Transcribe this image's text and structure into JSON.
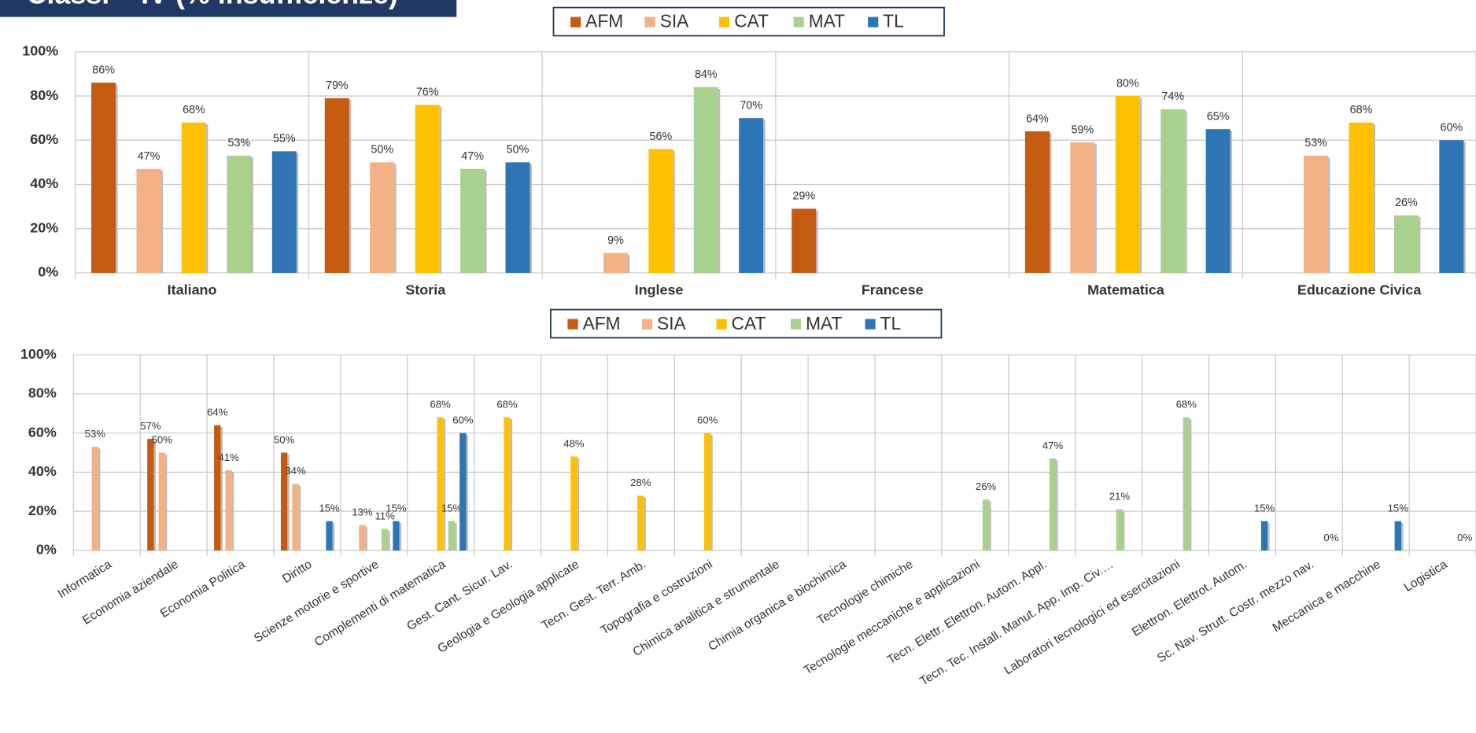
{
  "title": "Classi – IV (% insufficienze)",
  "chart_data": [
    {
      "type": "bar",
      "categories": [
        "Italiano",
        "Storia",
        "Inglese",
        "Francese",
        "Matematica",
        "Educazione Civica"
      ],
      "series": [
        {
          "name": "AFM",
          "color": "#c55a11",
          "values": [
            86,
            79,
            null,
            29,
            64,
            null
          ],
          "value_labels": [
            "86%",
            "79%",
            null,
            "29%",
            "64%",
            null
          ]
        },
        {
          "name": "SIA",
          "color": "#f4b183",
          "values": [
            47,
            50,
            9,
            null,
            59,
            53
          ],
          "value_labels": [
            "47%",
            "50%",
            "9%",
            null,
            "59%",
            "53%"
          ]
        },
        {
          "name": "CAT",
          "color": "#ffc000",
          "values": [
            68,
            76,
            56,
            null,
            80,
            68
          ],
          "value_labels": [
            "68%",
            "76%",
            "56%",
            null,
            "80%",
            "68%"
          ]
        },
        {
          "name": "MAT",
          "color": "#a9d18e",
          "values": [
            53,
            47,
            84,
            null,
            74,
            26
          ],
          "value_labels": [
            "53%",
            "47%",
            "84%",
            null,
            "74%",
            "26%"
          ]
        },
        {
          "name": "TL",
          "color": "#2e75b6",
          "values": [
            55,
            50,
            70,
            null,
            65,
            60
          ],
          "value_labels": [
            "55%",
            "50%",
            "70%",
            null,
            "65%",
            "60%"
          ]
        }
      ],
      "ylim": [
        0,
        100
      ],
      "yticks": [
        {
          "value": 0,
          "label": "0%"
        },
        {
          "value": 20,
          "label": "20%"
        },
        {
          "value": 40,
          "label": "40%"
        },
        {
          "value": 60,
          "label": "60%"
        },
        {
          "value": 80,
          "label": "80%"
        },
        {
          "value": 100,
          "label": "100%"
        }
      ],
      "grid": true,
      "legend": "top"
    },
    {
      "type": "bar",
      "categories": [
        "Informatica",
        "Economia aziendale",
        "Economia Politica",
        "Diritto",
        "Scienze motorie e sportive",
        "Complementi di matematica",
        "Gest. Cant. Sicur. Lav.",
        "Geologia e Geologia applicate",
        "Tecn. Gest. Terr. Amb.",
        "Topografia e costruzioni",
        "Chimica analitica e strumentale",
        "Chimia organica e biochimica",
        "Tecnologie chimiche",
        "Tecnologie meccaniche e applicazioni",
        "Tecn. Elettr. Elettron. Autom. Appl.",
        "Tecn. Tec. Install. Manut. App. Imp. Civ.…",
        "Laboratori tecnologici ed esercitazioni",
        "Elettron. Elettrot. Autom.",
        "Sc. Nav. Strutt. Costr. mezzo nav.",
        "Meccanica e macchine",
        "Logistica"
      ],
      "series": [
        {
          "name": "AFM",
          "color": "#c55a11",
          "values": [
            null,
            57,
            64,
            50,
            null,
            null,
            null,
            null,
            null,
            null,
            null,
            null,
            null,
            null,
            null,
            null,
            null,
            null,
            null,
            null,
            null
          ],
          "value_labels": [
            null,
            "57%",
            "64%",
            "50%",
            null,
            null,
            null,
            null,
            null,
            null,
            null,
            null,
            null,
            null,
            null,
            null,
            null,
            null,
            null,
            null,
            null
          ]
        },
        {
          "name": "SIA",
          "color": "#f4b183",
          "values": [
            53,
            50,
            41,
            34,
            13,
            null,
            null,
            null,
            null,
            null,
            null,
            null,
            null,
            null,
            null,
            null,
            null,
            null,
            null,
            null,
            null
          ],
          "value_labels": [
            "53%",
            "50%",
            "41%",
            "34%",
            "13%",
            null,
            null,
            null,
            null,
            null,
            null,
            null,
            null,
            null,
            null,
            null,
            null,
            null,
            null,
            null,
            null
          ]
        },
        {
          "name": "CAT",
          "color": "#ffc000",
          "values": [
            null,
            null,
            null,
            null,
            null,
            68,
            68,
            48,
            28,
            60,
            null,
            null,
            null,
            null,
            null,
            null,
            null,
            null,
            null,
            null,
            null
          ],
          "value_labels": [
            null,
            null,
            null,
            null,
            null,
            "68%",
            "68%",
            "48%",
            "28%",
            "60%",
            null,
            null,
            null,
            null,
            null,
            null,
            null,
            null,
            null,
            null,
            null
          ]
        },
        {
          "name": "MAT",
          "color": "#a9d18e",
          "values": [
            null,
            null,
            null,
            null,
            11,
            15,
            null,
            null,
            null,
            null,
            null,
            null,
            null,
            26,
            47,
            21,
            68,
            null,
            null,
            null,
            null
          ],
          "value_labels": [
            null,
            null,
            null,
            null,
            "11%",
            "15%",
            null,
            null,
            null,
            null,
            null,
            null,
            null,
            "26%",
            "47%",
            "21%",
            "68%",
            null,
            null,
            null,
            null
          ]
        },
        {
          "name": "TL",
          "color": "#2e75b6",
          "values": [
            null,
            null,
            null,
            15,
            15,
            60,
            null,
            null,
            null,
            null,
            null,
            null,
            null,
            null,
            null,
            null,
            null,
            15,
            0,
            15,
            0
          ],
          "value_labels": [
            null,
            null,
            null,
            "15%",
            "15%",
            "60%",
            null,
            null,
            null,
            null,
            null,
            null,
            null,
            null,
            null,
            null,
            null,
            "15%",
            "0%",
            "15%",
            "0%"
          ]
        }
      ],
      "ylim": [
        0,
        100
      ],
      "yticks": [
        {
          "value": 0,
          "label": "0%"
        },
        {
          "value": 20,
          "label": "20%"
        },
        {
          "value": 40,
          "label": "40%"
        },
        {
          "value": 60,
          "label": "60%"
        },
        {
          "value": 80,
          "label": "80%"
        },
        {
          "value": 100,
          "label": "100%"
        }
      ],
      "grid": true,
      "legend": "top"
    }
  ]
}
